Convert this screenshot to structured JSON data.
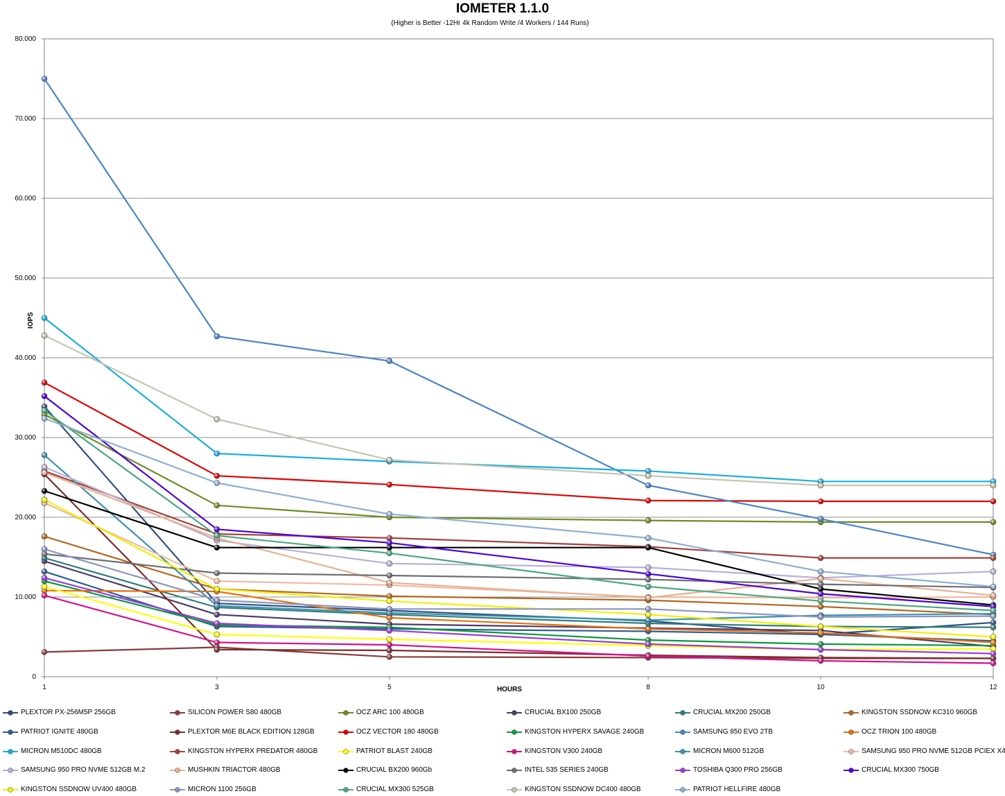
{
  "chart_data": {
    "type": "line",
    "title": "IOMETER 1.1.0",
    "subtitle": "(Higher is Better -12Hr 4k Random Write /4 Workers / 144 Runs)",
    "xlabel": "HOURS",
    "ylabel": "IOPS",
    "x": [
      1,
      3,
      5,
      8,
      10,
      12
    ],
    "ylim": [
      0,
      80000
    ],
    "ytick_labels": [
      "0",
      "10.000",
      "20.000",
      "30.000",
      "40.000",
      "50.000",
      "60.000",
      "70.000",
      "80.000"
    ],
    "yticks": [
      0,
      10000,
      20000,
      30000,
      40000,
      50000,
      60000,
      70000,
      80000
    ],
    "grid": true,
    "legend_position": "bottom",
    "series": [
      {
        "name": "PLEXTOR PX-256M5P 256GB",
        "color": "#2f4f7f",
        "values": [
          33900,
          9200,
          8300,
          7000,
          5300,
          6800
        ]
      },
      {
        "name": "SILICON POWER S80 480GB",
        "color": "#8b3a3a",
        "values": [
          3100,
          3700,
          2500,
          2400,
          2300,
          2300
        ]
      },
      {
        "name": "OCZ ARC 100 480GB",
        "color": "#6b8e23",
        "values": [
          32900,
          21500,
          20000,
          19600,
          19400,
          19400
        ]
      },
      {
        "name": "CRUCIAL BX100 250GB",
        "color": "#4b3b6b",
        "values": [
          14500,
          7800,
          6600,
          6100,
          5800,
          3800
        ]
      },
      {
        "name": "CRUCIAL MX200 250GB",
        "color": "#2e7d7d",
        "values": [
          14900,
          8700,
          7800,
          6700,
          6300,
          6200
        ]
      },
      {
        "name": "KINGSTON SSDNOW KC310 960GB",
        "color": "#b5651d",
        "values": [
          17600,
          11000,
          10100,
          9600,
          8800,
          7800
        ]
      },
      {
        "name": "PATRIOT IGNITE 480GB",
        "color": "#2d5f96",
        "values": [
          13200,
          6300,
          6000,
          5700,
          5300,
          4500
        ]
      },
      {
        "name": "PLEXTOR M6E BLACK EDITION 128GB",
        "color": "#7b2c2c",
        "values": [
          25400,
          3400,
          3300,
          2700,
          2400,
          2300
        ]
      },
      {
        "name": "OCZ VECTOR 180 480GB",
        "color": "#e00000",
        "values": [
          36900,
          25200,
          24100,
          22100,
          22000,
          22000
        ]
      },
      {
        "name": "KINGSTON HYPERX SAVAGE 240GB",
        "color": "#0a9a3c",
        "values": [
          12000,
          6500,
          6200,
          4600,
          4100,
          3900
        ]
      },
      {
        "name": "SAMSUNG 850 EVO 2TB",
        "color": "#4a84c8",
        "values": [
          75000,
          42700,
          39600,
          24000,
          19800,
          15300
        ]
      },
      {
        "name": "OCZ TRION 100 480GB",
        "color": "#e8700a",
        "values": [
          10800,
          10700,
          7400,
          6000,
          5500,
          4300
        ]
      },
      {
        "name": "MICRON M510DC 480GB",
        "color": "#16aee0",
        "values": [
          45000,
          28000,
          27000,
          25800,
          24500,
          24500
        ]
      },
      {
        "name": "KINGSTON HYPERX PREDATOR 480GB",
        "color": "#a3413a",
        "values": [
          25800,
          17900,
          17400,
          16300,
          14900,
          14900
        ]
      },
      {
        "name": "PATRIOT BLAST 240GB",
        "color": "#ffff00",
        "values": [
          11300,
          5300,
          4700,
          3900,
          3400,
          3500
        ]
      },
      {
        "name": "KINGSTON V300 240GB",
        "color": "#d4108c",
        "values": [
          10200,
          4300,
          4000,
          2600,
          2000,
          1700
        ]
      },
      {
        "name": "MICRON M600 512GB",
        "color": "#3a92b0",
        "values": [
          27800,
          8900,
          8000,
          7100,
          7700,
          7900
        ]
      },
      {
        "name": "SAMSUNG 950 PRO NVME 512GB PCIEX X4",
        "color": "#f0b8a0",
        "values": [
          21800,
          12000,
          11500,
          10000,
          9900,
          10000
        ]
      },
      {
        "name": "SAMSUNG 950 PRO NVME 512GB M.2",
        "color": "#b8b0d8",
        "values": [
          26300,
          17100,
          14200,
          13700,
          12400,
          13200
        ]
      },
      {
        "name": "MUSHKIN TRIACTOR 480GB",
        "color": "#e8b090",
        "values": [
          25600,
          17400,
          11800,
          9900,
          12300,
          10200
        ]
      },
      {
        "name": "CRUCIAL BX200 960Gb",
        "color": "#000000",
        "values": [
          23300,
          16200,
          16200,
          16200,
          11000,
          9000
        ]
      },
      {
        "name": "INTEL 535 SERIES 240GB",
        "color": "#6e6e72",
        "values": [
          15400,
          13000,
          12700,
          12200,
          11600,
          11200
        ]
      },
      {
        "name": "TOSHIBA Q300 PRO 256GB",
        "color": "#9a3bd8",
        "values": [
          12400,
          6700,
          5800,
          4100,
          3400,
          2900
        ]
      },
      {
        "name": "CRUCIAL MX300 750GB",
        "color": "#4b00dc",
        "values": [
          35200,
          18500,
          16800,
          12900,
          10400,
          8800
        ]
      },
      {
        "name": "KINGSTON SSDNOW UV400 480GB",
        "color": "#f0f000",
        "values": [
          22200,
          11000,
          9500,
          7800,
          6300,
          5000
        ]
      },
      {
        "name": "MICRON 1100 256GB",
        "color": "#8a94c0",
        "values": [
          16000,
          9600,
          8500,
          8500,
          7500,
          7600
        ]
      },
      {
        "name": "CRUCIAL MX300 525GB",
        "color": "#4aa880",
        "values": [
          33400,
          17700,
          15500,
          11300,
          9500,
          8300
        ]
      },
      {
        "name": "KINGSTON SSDNOW DC400 480GB",
        "color": "#c4c4b0",
        "values": [
          42800,
          32300,
          27200,
          25200,
          24000,
          24000
        ]
      },
      {
        "name": "PATRIOT HELLFIRE 480GB",
        "color": "#8caed8",
        "values": [
          32400,
          24300,
          20400,
          17400,
          13200,
          11300
        ]
      }
    ]
  }
}
